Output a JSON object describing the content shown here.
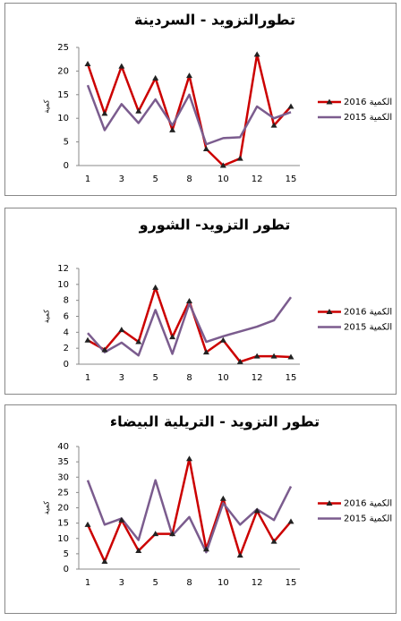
{
  "chart_data": [
    {
      "type": "line",
      "title": "تطورالتزويد - السردينة",
      "y_label": "كمية",
      "categories": [
        "1",
        null,
        "3",
        null,
        "5",
        null,
        "8",
        null,
        "10",
        null,
        "12",
        null,
        "15"
      ],
      "series": [
        {
          "name": "2016 الكمية",
          "color": "#cc0000",
          "marker": "triangle",
          "values": [
            21.5,
            11,
            21,
            11.5,
            18.5,
            7.5,
            19,
            3.5,
            0,
            1.5,
            23.5,
            8.5,
            12.5
          ]
        },
        {
          "name": "2015 الكمية",
          "color": "#7b5c8e",
          "values": [
            17,
            7.5,
            13,
            9,
            14,
            8.5,
            15,
            4.5,
            5.8,
            6,
            12.5,
            10,
            11.3
          ]
        }
      ],
      "ylim": [
        0,
        25
      ],
      "yticks": [
        0,
        5,
        10,
        15,
        20,
        25
      ]
    },
    {
      "type": "line",
      "title": "تطور التزويد- الشورو",
      "y_label": "كمية",
      "categories": [
        "1",
        null,
        "3",
        null,
        "5",
        null,
        "8",
        null,
        "10",
        null,
        "12",
        null,
        "15"
      ],
      "series": [
        {
          "name": "2016 الكمية",
          "color": "#cc0000",
          "marker": "triangle",
          "values": [
            3,
            1.8,
            4.3,
            2.8,
            9.6,
            3.4,
            7.9,
            1.5,
            3,
            0.3,
            1,
            1,
            0.9
          ]
        },
        {
          "name": "2015 الكمية",
          "color": "#7b5c8e",
          "values": [
            3.9,
            1.5,
            2.7,
            1.1,
            6.8,
            1.3,
            7.6,
            2.8,
            3.5,
            4.1,
            4.7,
            5.5,
            8.4
          ]
        }
      ],
      "ylim": [
        0,
        12
      ],
      "yticks": [
        0,
        2,
        4,
        6,
        8,
        10,
        12
      ]
    },
    {
      "type": "line",
      "title": "تطور التزويد - التريلية البيضاء",
      "y_label": "كمية",
      "categories": [
        "1",
        null,
        "3",
        null,
        "5",
        null,
        "8",
        null,
        "10",
        null,
        "12",
        null,
        "15"
      ],
      "series": [
        {
          "name": "2016 الكمية",
          "color": "#cc0000",
          "marker": "triangle",
          "values": [
            14.5,
            2.5,
            16,
            6,
            11.5,
            11.5,
            36,
            6.5,
            23,
            4.5,
            19,
            9,
            15.5
          ]
        },
        {
          "name": "2015 الكمية",
          "color": "#7b5c8e",
          "values": [
            29,
            14.5,
            16.5,
            9.5,
            29,
            11,
            17,
            5.5,
            21.5,
            14.5,
            19.5,
            16,
            27
          ]
        }
      ],
      "ylim": [
        0,
        40
      ],
      "yticks": [
        0,
        5,
        10,
        15,
        20,
        25,
        30,
        35,
        40
      ]
    }
  ]
}
